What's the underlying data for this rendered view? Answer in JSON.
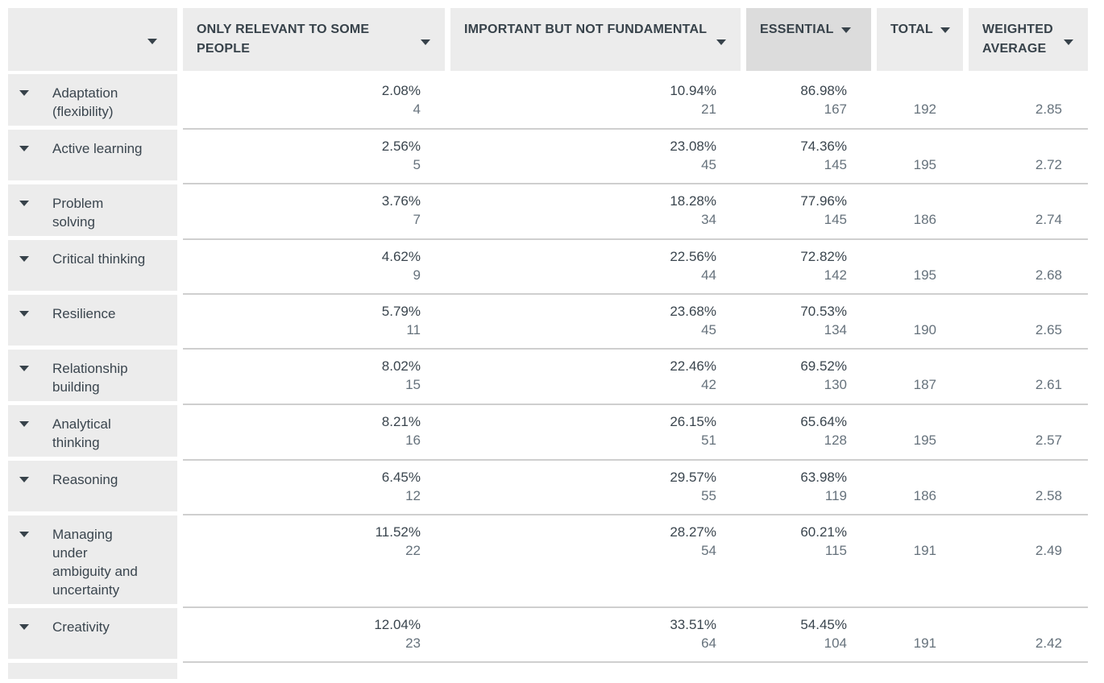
{
  "colors": {
    "header_bg": "#ececec",
    "highlighted_column_bg": "#dcdcdc",
    "row_label_bg": "#ececec",
    "text_primary": "#37424a",
    "text_secondary": "#66727c",
    "row_divider": "#cfcfcf"
  },
  "icons": {
    "sort_dropdown": "triangle-down"
  },
  "table": {
    "columns": [
      {
        "label": "",
        "highlighted": false
      },
      {
        "label": "ONLY RELEVANT TO SOME PEOPLE",
        "highlighted": false
      },
      {
        "label": "IMPORTANT BUT NOT FUNDAMENTAL",
        "highlighted": false
      },
      {
        "label": "ESSENTIAL",
        "highlighted": true
      },
      {
        "label": "TOTAL",
        "highlighted": false
      },
      {
        "label": "WEIGHTED AVERAGE",
        "highlighted": false
      }
    ],
    "rows": [
      {
        "label": "Adaptation (flexibility)",
        "cells": [
          {
            "pct": "2.08%",
            "count": "4"
          },
          {
            "pct": "10.94%",
            "count": "21"
          },
          {
            "pct": "86.98%",
            "count": "167"
          }
        ],
        "total": "192",
        "weighted_average": "2.85"
      },
      {
        "label": "Active learning",
        "cells": [
          {
            "pct": "2.56%",
            "count": "5"
          },
          {
            "pct": "23.08%",
            "count": "45"
          },
          {
            "pct": "74.36%",
            "count": "145"
          }
        ],
        "total": "195",
        "weighted_average": "2.72"
      },
      {
        "label": "Problem solving",
        "cells": [
          {
            "pct": "3.76%",
            "count": "7"
          },
          {
            "pct": "18.28%",
            "count": "34"
          },
          {
            "pct": "77.96%",
            "count": "145"
          }
        ],
        "total": "186",
        "weighted_average": "2.74"
      },
      {
        "label": "Critical thinking",
        "cells": [
          {
            "pct": "4.62%",
            "count": "9"
          },
          {
            "pct": "22.56%",
            "count": "44"
          },
          {
            "pct": "72.82%",
            "count": "142"
          }
        ],
        "total": "195",
        "weighted_average": "2.68"
      },
      {
        "label": "Resilience",
        "cells": [
          {
            "pct": "5.79%",
            "count": "11"
          },
          {
            "pct": "23.68%",
            "count": "45"
          },
          {
            "pct": "70.53%",
            "count": "134"
          }
        ],
        "total": "190",
        "weighted_average": "2.65"
      },
      {
        "label": "Relationship building",
        "cells": [
          {
            "pct": "8.02%",
            "count": "15"
          },
          {
            "pct": "22.46%",
            "count": "42"
          },
          {
            "pct": "69.52%",
            "count": "130"
          }
        ],
        "total": "187",
        "weighted_average": "2.61"
      },
      {
        "label": "Analytical thinking",
        "cells": [
          {
            "pct": "8.21%",
            "count": "16"
          },
          {
            "pct": "26.15%",
            "count": "51"
          },
          {
            "pct": "65.64%",
            "count": "128"
          }
        ],
        "total": "195",
        "weighted_average": "2.57"
      },
      {
        "label": "Reasoning",
        "cells": [
          {
            "pct": "6.45%",
            "count": "12"
          },
          {
            "pct": "29.57%",
            "count": "55"
          },
          {
            "pct": "63.98%",
            "count": "119"
          }
        ],
        "total": "186",
        "weighted_average": "2.58"
      },
      {
        "label": "Managing under ambiguity and uncertainty",
        "cells": [
          {
            "pct": "11.52%",
            "count": "22"
          },
          {
            "pct": "28.27%",
            "count": "54"
          },
          {
            "pct": "60.21%",
            "count": "115"
          }
        ],
        "total": "191",
        "weighted_average": "2.49"
      },
      {
        "label": "Creativity",
        "cells": [
          {
            "pct": "12.04%",
            "count": "23"
          },
          {
            "pct": "33.51%",
            "count": "64"
          },
          {
            "pct": "54.45%",
            "count": "104"
          }
        ],
        "total": "191",
        "weighted_average": "2.42"
      }
    ]
  }
}
